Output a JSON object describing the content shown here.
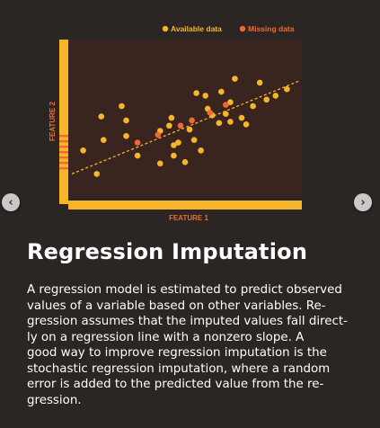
{
  "navigation": {
    "prev_icon": "chevron-left-icon",
    "next_icon": "chevron-right-icon",
    "prev_glyph": "‹",
    "next_glyph": "›"
  },
  "colors": {
    "background": "#2b2523",
    "plot_area": "#3a2420",
    "available": "#f7b52a",
    "missing": "#ef6a32",
    "axis": "#f7b52a"
  },
  "chart_data": {
    "type": "scatter",
    "xlabel": "FEATURE 1",
    "ylabel": "FEATURE 2",
    "legend": {
      "position": "top-right",
      "items": [
        {
          "label": "Available data",
          "color": "#f7b52a"
        },
        {
          "label": "Missing data",
          "color": "#ef6a32"
        }
      ]
    },
    "grid": false,
    "xlim": [
      0,
      100
    ],
    "ylim": [
      0,
      100
    ],
    "regression_line": {
      "style": "dashed",
      "x": [
        0,
        100
      ],
      "y": [
        8,
        79
      ]
    },
    "series": [
      {
        "name": "Available data",
        "points": [
          [
            5,
            26
          ],
          [
            13,
            52
          ],
          [
            14,
            34
          ],
          [
            11,
            8
          ],
          [
            22,
            60
          ],
          [
            24,
            49
          ],
          [
            24,
            37
          ],
          [
            29,
            22
          ],
          [
            39,
            16
          ],
          [
            39,
            41
          ],
          [
            43,
            45
          ],
          [
            44,
            51
          ],
          [
            45,
            30
          ],
          [
            45,
            22
          ],
          [
            47,
            32
          ],
          [
            50,
            17
          ],
          [
            52,
            42
          ],
          [
            54,
            34
          ],
          [
            55,
            70
          ],
          [
            57,
            26
          ],
          [
            59,
            68
          ],
          [
            60,
            58
          ],
          [
            62,
            53
          ],
          [
            65,
            47
          ],
          [
            66,
            71
          ],
          [
            68,
            54
          ],
          [
            70,
            48
          ],
          [
            70,
            63
          ],
          [
            72,
            81
          ],
          [
            75,
            51
          ],
          [
            77,
            46
          ],
          [
            80,
            60
          ],
          [
            83,
            78
          ],
          [
            86,
            65
          ],
          [
            90,
            68
          ],
          [
            95,
            73
          ]
        ]
      },
      {
        "name": "Missing data",
        "points": [
          [
            29,
            32
          ],
          [
            38,
            38
          ],
          [
            48,
            45
          ],
          [
            53,
            49
          ],
          [
            61,
            55
          ],
          [
            68,
            61
          ]
        ]
      }
    ]
  },
  "content": {
    "title": "Regression Imputation",
    "body": "A regression model is estimated to predict observed\nvalues of a variable based on other variables. Re-\ngression assumes that the imputed values fall direct-\nly on a regression line with a nonzero slope. A\ngood way to improve regression imputation is the\nstochastic regression imputation, where a random\nerror is added to the predicted value from the re-\ngression."
  }
}
